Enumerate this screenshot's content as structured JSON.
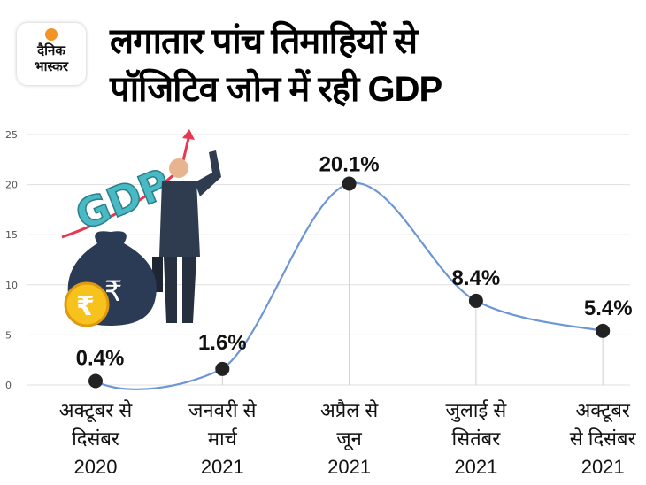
{
  "logo": {
    "line1": "दैनिक",
    "line2": "भास्कर"
  },
  "header": {
    "title_line1": "लगातार पांच तिमाहियों से",
    "title_line2": "पॉजिटिव जोन में रही GDP"
  },
  "illustration": {
    "text": "GDP",
    "coin_symbol": "₹"
  },
  "colors": {
    "line": "#6d96d6",
    "point": "#222222",
    "grid": "#e0e0e0",
    "arrow": "#e8384f",
    "gdp_text": "#49b9c4"
  },
  "chart_data": {
    "type": "line",
    "title": "लगातार पांच तिमाहियों से पॉजिटिव जोन में रही GDP",
    "categories": [
      [
        "अक्टूबर से",
        "दिसंबर",
        "2020"
      ],
      [
        "जनवरी से",
        "मार्च",
        "2021"
      ],
      [
        "अप्रैल से",
        "जून",
        "2021"
      ],
      [
        "जुलाई से",
        "सितंबर",
        "2021"
      ],
      [
        "अक्टूबर",
        "से दिसंबर",
        "2021"
      ]
    ],
    "values": [
      0.4,
      1.6,
      20.1,
      8.4,
      5.4
    ],
    "data_labels": [
      "0.4%",
      "1.6%",
      "20.1%",
      "8.4%",
      "5.4%"
    ],
    "ylim": [
      0,
      25
    ],
    "yticks": [
      "0",
      "5",
      "10",
      "15",
      "20",
      "25"
    ],
    "grid": true,
    "smooth": true
  }
}
